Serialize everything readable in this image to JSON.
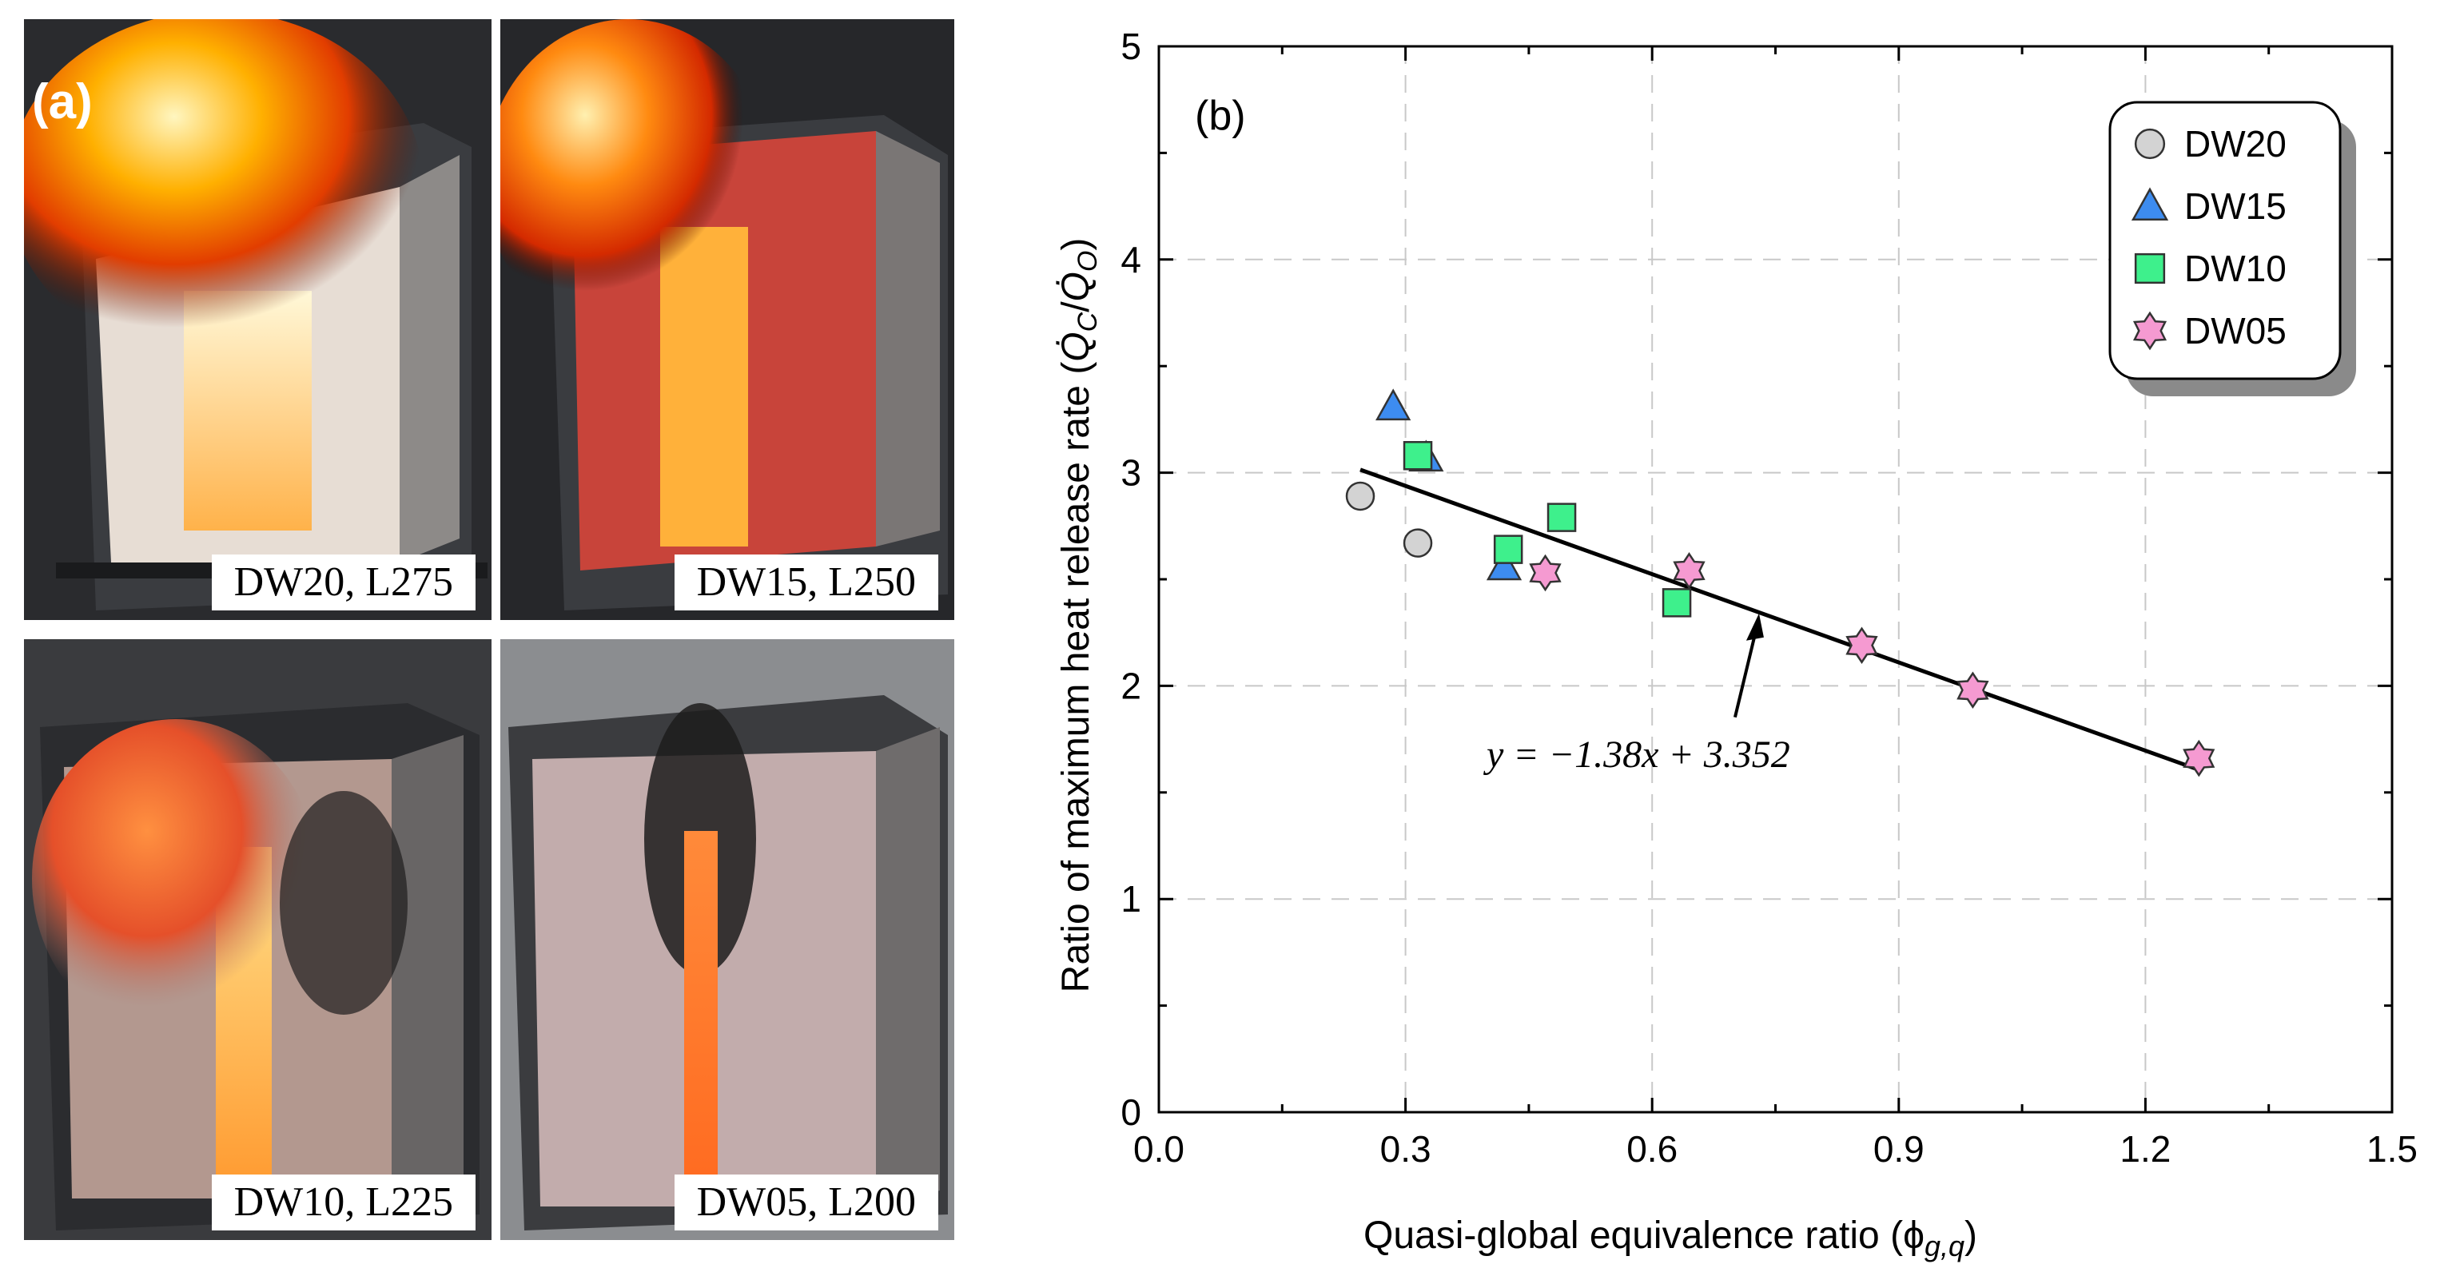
{
  "panel_a": {
    "label": "(a)",
    "photos": [
      {
        "caption": "DW20, L275"
      },
      {
        "caption": "DW15, L250"
      },
      {
        "caption": "DW10, L225"
      },
      {
        "caption": "DW05, L200"
      }
    ]
  },
  "colors": {
    "DW20": "#d3d3d3",
    "DW15": "#3d8cf0",
    "DW10": "#3ef08c",
    "DW05": "#f59ad1"
  },
  "chart_data": {
    "type": "scatter",
    "panel_label": "(b)",
    "xlabel": "Quasi-global equivalence ratio (ϕ",
    "xlabel_sub": "g,q",
    "xlabel_close": ")",
    "ylabel": "Ratio of maximum heat release rate (",
    "ylabel_q1": "Q̇",
    "ylabel_sub1": "C",
    "ylabel_slash": "/",
    "ylabel_q2": "Q̇",
    "ylabel_sub2": "O",
    "ylabel_close": ")",
    "xlim": [
      0.0,
      1.5
    ],
    "ylim": [
      0,
      5
    ],
    "x_ticks": [
      "0.0",
      "0.3",
      "0.6",
      "0.9",
      "1.2",
      "1.5"
    ],
    "y_ticks": [
      "0",
      "1",
      "2",
      "3",
      "4",
      "5"
    ],
    "grid": true,
    "legend_position": "top-right",
    "series": [
      {
        "name": "DW20",
        "marker": "circle",
        "points": [
          [
            0.245,
            2.89
          ],
          [
            0.315,
            2.67
          ]
        ]
      },
      {
        "name": "DW15",
        "marker": "triangle",
        "points": [
          [
            0.285,
            3.31
          ],
          [
            0.325,
            3.07
          ],
          [
            0.42,
            2.56
          ]
        ]
      },
      {
        "name": "DW10",
        "marker": "square",
        "points": [
          [
            0.315,
            3.08
          ],
          [
            0.425,
            2.64
          ],
          [
            0.49,
            2.79
          ],
          [
            0.63,
            2.39
          ]
        ]
      },
      {
        "name": "DW05",
        "marker": "star",
        "points": [
          [
            0.47,
            2.53
          ],
          [
            0.645,
            2.54
          ],
          [
            0.855,
            2.19
          ],
          [
            0.99,
            1.98
          ],
          [
            1.265,
            1.66
          ]
        ]
      }
    ],
    "fit_line": {
      "slope": -1.38,
      "intercept": 3.352,
      "x_range": [
        0.245,
        1.265
      ]
    },
    "annotation": {
      "text": "y = −1.38x + 3.352",
      "points_to": [
        0.73,
        2.34
      ]
    }
  }
}
